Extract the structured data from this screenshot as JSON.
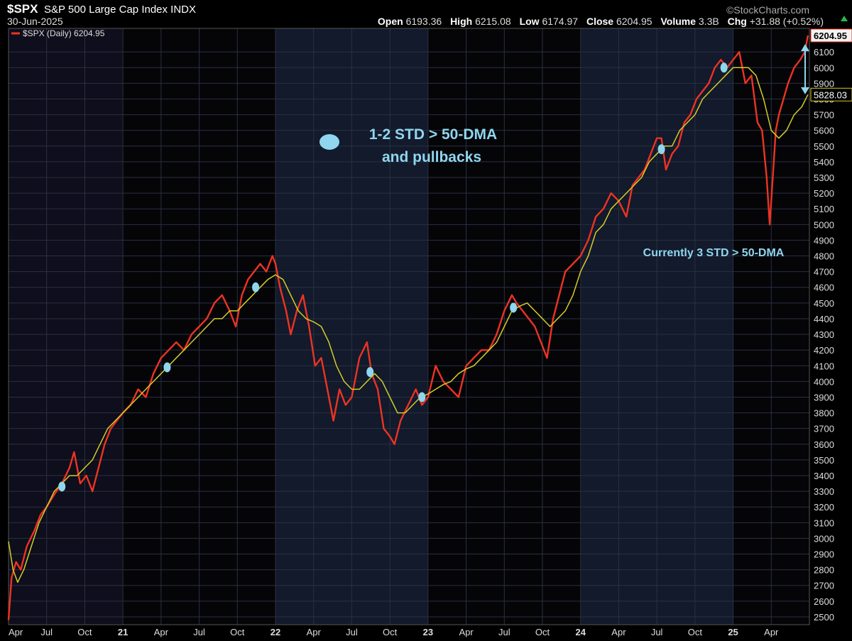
{
  "header": {
    "symbol": "$SPX",
    "index_name": "S&P 500 Large Cap Index  INDX",
    "brand": "©StockCharts.com",
    "date": "30-Jun-2025",
    "open_label": "Open",
    "open": "6193.36",
    "high_label": "High",
    "high": "6215.08",
    "low_label": "Low",
    "low": "6174.97",
    "close_label": "Close",
    "close": "6204.95",
    "volume_label": "Volume",
    "volume": "3.3B",
    "chg_label": "Chg",
    "chg": "+31.88 (+0.52%)"
  },
  "legend": {
    "label": "$SPX (Daily) 6204.95"
  },
  "annotations": {
    "title_line1": "1-2 STD > 50-DMA",
    "title_line2": "and pullbacks",
    "currently": "Currently 3 STD > 50-DMA"
  },
  "colors": {
    "price": "#ee3322",
    "ma": "#d4cc2a",
    "annotation": "#8fd6ee",
    "band_dark": "#0b0b1a",
    "band_light": "#121a2c"
  },
  "chart_data": {
    "type": "line",
    "x_tick_labels": [
      "Apr",
      "Jul",
      "Oct",
      "21",
      "Apr",
      "Jul",
      "Oct",
      "22",
      "Apr",
      "Jul",
      "Oct",
      "23",
      "Apr",
      "Jul",
      "Oct",
      "24",
      "Apr",
      "Jul",
      "Oct",
      "25",
      "Apr"
    ],
    "x_tick_years": [
      2020.25,
      2020.5,
      2020.75,
      2021,
      2021.25,
      2021.5,
      2021.75,
      2022,
      2022.25,
      2022.5,
      2022.75,
      2023,
      2023.25,
      2023.5,
      2023.75,
      2024,
      2024.25,
      2024.5,
      2024.75,
      2025,
      2025.25
    ],
    "y_tick_labels": [
      2500,
      2600,
      2700,
      2800,
      2900,
      3000,
      3100,
      3200,
      3300,
      3400,
      3500,
      3600,
      3700,
      3800,
      3900,
      4000,
      4100,
      4200,
      4300,
      4400,
      4500,
      4600,
      4700,
      4800,
      4900,
      5000,
      5100,
      5200,
      5300,
      5400,
      5500,
      5600,
      5700,
      5800,
      5900,
      6000,
      6100
    ],
    "ylim": [
      2450,
      6250
    ],
    "xlim": [
      2020.25,
      2025.5
    ],
    "price_label": "6204.95",
    "ma_label": "5828.03",
    "series": [
      {
        "name": "$SPX (Daily)",
        "x": [
          2020.25,
          2020.27,
          2020.3,
          2020.33,
          2020.37,
          2020.42,
          2020.46,
          2020.5,
          2020.55,
          2020.6,
          2020.65,
          2020.68,
          2020.72,
          2020.76,
          2020.8,
          2020.84,
          2020.88,
          2020.92,
          2020.96,
          2021.0,
          2021.05,
          2021.1,
          2021.15,
          2021.2,
          2021.25,
          2021.3,
          2021.35,
          2021.4,
          2021.45,
          2021.5,
          2021.55,
          2021.6,
          2021.65,
          2021.7,
          2021.74,
          2021.78,
          2021.82,
          2021.86,
          2021.9,
          2021.94,
          2021.98,
          2022.0,
          2022.03,
          2022.07,
          2022.1,
          2022.14,
          2022.18,
          2022.22,
          2022.26,
          2022.3,
          2022.34,
          2022.38,
          2022.42,
          2022.46,
          2022.5,
          2022.55,
          2022.6,
          2022.63,
          2022.67,
          2022.71,
          2022.75,
          2022.78,
          2022.82,
          2022.87,
          2022.92,
          2022.96,
          2023.0,
          2023.05,
          2023.1,
          2023.15,
          2023.2,
          2023.25,
          2023.3,
          2023.35,
          2023.4,
          2023.45,
          2023.5,
          2023.55,
          2023.58,
          2023.62,
          2023.66,
          2023.7,
          2023.74,
          2023.78,
          2023.82,
          2023.86,
          2023.9,
          2023.95,
          2024.0,
          2024.05,
          2024.1,
          2024.15,
          2024.2,
          2024.25,
          2024.3,
          2024.34,
          2024.38,
          2024.42,
          2024.46,
          2024.5,
          2024.53,
          2024.56,
          2024.6,
          2024.64,
          2024.68,
          2024.72,
          2024.76,
          2024.8,
          2024.84,
          2024.88,
          2024.92,
          2024.96,
          2025.0,
          2025.04,
          2025.08,
          2025.12,
          2025.16,
          2025.19,
          2025.22,
          2025.24,
          2025.26,
          2025.28,
          2025.3,
          2025.33,
          2025.36,
          2025.4,
          2025.44,
          2025.47,
          2025.49
        ],
        "values": [
          2480,
          2750,
          2850,
          2800,
          2950,
          3050,
          3150,
          3200,
          3280,
          3350,
          3450,
          3550,
          3350,
          3400,
          3300,
          3450,
          3600,
          3700,
          3750,
          3800,
          3850,
          3950,
          3900,
          4050,
          4150,
          4200,
          4250,
          4200,
          4300,
          4350,
          4400,
          4500,
          4550,
          4450,
          4350,
          4550,
          4650,
          4700,
          4750,
          4700,
          4800,
          4750,
          4600,
          4450,
          4300,
          4450,
          4550,
          4350,
          4100,
          4150,
          3950,
          3750,
          3950,
          3850,
          3900,
          4150,
          4250,
          4050,
          3950,
          3700,
          3650,
          3600,
          3750,
          3850,
          3950,
          3850,
          3900,
          4100,
          4000,
          3950,
          3900,
          4100,
          4150,
          4200,
          4200,
          4300,
          4450,
          4550,
          4500,
          4450,
          4400,
          4350,
          4250,
          4150,
          4400,
          4550,
          4700,
          4750,
          4800,
          4900,
          5050,
          5100,
          5200,
          5150,
          5050,
          5250,
          5300,
          5350,
          5450,
          5550,
          5550,
          5350,
          5450,
          5500,
          5650,
          5700,
          5800,
          5850,
          5900,
          6000,
          6050,
          6000,
          6050,
          6100,
          5900,
          5950,
          5650,
          5600,
          5300,
          5000,
          5300,
          5600,
          5700,
          5800,
          5900,
          6000,
          6050,
          6100,
          6204.95
        ]
      },
      {
        "name": "50-DMA",
        "x": [
          2020.25,
          2020.28,
          2020.31,
          2020.35,
          2020.4,
          2020.45,
          2020.5,
          2020.55,
          2020.6,
          2020.65,
          2020.7,
          2020.75,
          2020.8,
          2020.85,
          2020.9,
          2020.95,
          2021.0,
          2021.05,
          2021.1,
          2021.15,
          2021.2,
          2021.25,
          2021.3,
          2021.35,
          2021.4,
          2021.45,
          2021.5,
          2021.55,
          2021.6,
          2021.65,
          2021.7,
          2021.75,
          2021.8,
          2021.85,
          2021.9,
          2021.95,
          2022.0,
          2022.05,
          2022.1,
          2022.15,
          2022.2,
          2022.25,
          2022.3,
          2022.35,
          2022.4,
          2022.45,
          2022.5,
          2022.55,
          2022.6,
          2022.65,
          2022.7,
          2022.75,
          2022.8,
          2022.85,
          2022.9,
          2022.95,
          2023.0,
          2023.05,
          2023.1,
          2023.15,
          2023.2,
          2023.25,
          2023.3,
          2023.35,
          2023.4,
          2023.45,
          2023.5,
          2023.55,
          2023.6,
          2023.65,
          2023.7,
          2023.75,
          2023.8,
          2023.85,
          2023.9,
          2023.95,
          2024.0,
          2024.05,
          2024.1,
          2024.15,
          2024.2,
          2024.25,
          2024.3,
          2024.35,
          2024.4,
          2024.45,
          2024.5,
          2024.55,
          2024.6,
          2024.65,
          2024.7,
          2024.75,
          2024.8,
          2024.85,
          2024.9,
          2024.95,
          2025.0,
          2025.05,
          2025.1,
          2025.15,
          2025.2,
          2025.25,
          2025.3,
          2025.35,
          2025.4,
          2025.45,
          2025.49
        ],
        "values": [
          2980,
          2800,
          2720,
          2800,
          2950,
          3100,
          3200,
          3300,
          3350,
          3400,
          3400,
          3450,
          3500,
          3600,
          3700,
          3750,
          3800,
          3850,
          3900,
          3950,
          4000,
          4050,
          4100,
          4150,
          4200,
          4250,
          4300,
          4350,
          4400,
          4400,
          4450,
          4450,
          4500,
          4550,
          4600,
          4650,
          4680,
          4650,
          4550,
          4450,
          4400,
          4380,
          4350,
          4250,
          4100,
          4000,
          3950,
          3950,
          4000,
          4050,
          4000,
          3900,
          3800,
          3800,
          3850,
          3900,
          3920,
          3950,
          3980,
          4000,
          4050,
          4080,
          4100,
          4150,
          4200,
          4250,
          4350,
          4450,
          4480,
          4500,
          4450,
          4400,
          4350,
          4400,
          4450,
          4550,
          4700,
          4800,
          4950,
          5000,
          5100,
          5150,
          5200,
          5250,
          5300,
          5400,
          5450,
          5500,
          5500,
          5600,
          5650,
          5700,
          5800,
          5850,
          5900,
          5950,
          6000,
          6000,
          6000,
          5950,
          5800,
          5600,
          5550,
          5600,
          5700,
          5750,
          5828.03
        ]
      }
    ],
    "markers": [
      {
        "x": 2020.6,
        "y": 3330
      },
      {
        "x": 2021.29,
        "y": 4090
      },
      {
        "x": 2021.87,
        "y": 4600
      },
      {
        "x": 2022.62,
        "y": 4060
      },
      {
        "x": 2022.96,
        "y": 3900
      },
      {
        "x": 2023.56,
        "y": 4470
      },
      {
        "x": 2024.53,
        "y": 5480
      },
      {
        "x": 2024.94,
        "y": 6000
      }
    ]
  }
}
